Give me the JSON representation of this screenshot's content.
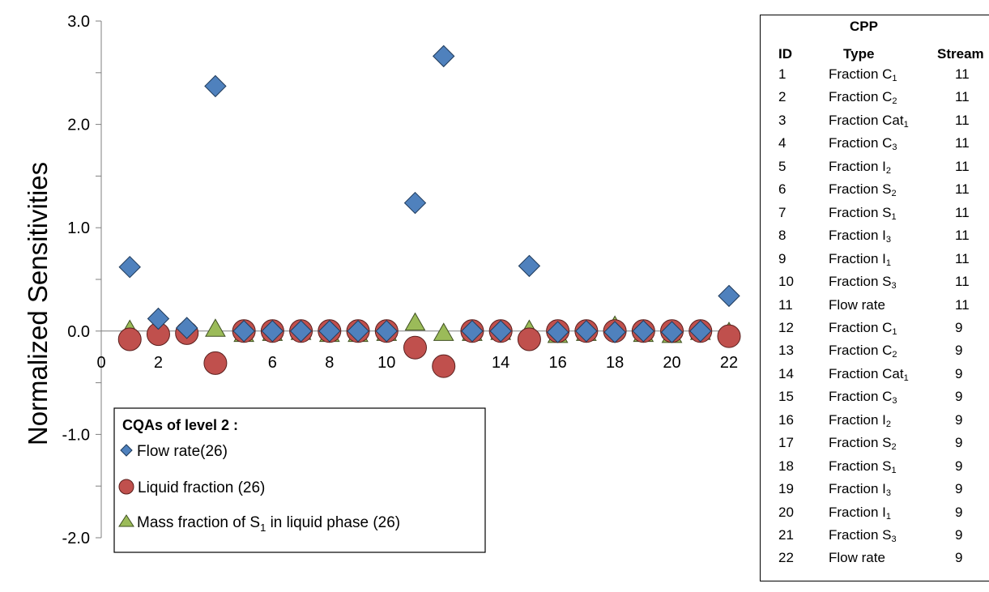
{
  "chart_data": {
    "type": "scatter",
    "ylabel": "Normalized Sensitivities",
    "xlim": [
      0,
      22
    ],
    "ylim": [
      -2.0,
      3.0
    ],
    "y_ticks": [
      "3.0",
      "2.0",
      "1.0",
      "0.0",
      "-1.0",
      "-2.0"
    ],
    "y_tick_values": [
      3,
      2,
      1,
      0,
      -1,
      -2
    ],
    "x_ticks": [
      "0",
      "2",
      "4",
      "6",
      "8",
      "10",
      "12",
      "14",
      "16",
      "18",
      "20",
      "22"
    ],
    "x_tick_values": [
      0,
      2,
      4,
      6,
      8,
      10,
      12,
      14,
      16,
      18,
      20,
      22
    ],
    "legend_title": "CQAs of level 2 :",
    "legend_position": "bottom-left",
    "grid": false,
    "series": [
      {
        "name": "Flow rate(26)",
        "marker": "diamond",
        "color": "#4f81bd",
        "x": [
          1,
          2,
          3,
          4,
          5,
          6,
          7,
          8,
          9,
          10,
          11,
          12,
          13,
          14,
          15,
          16,
          17,
          18,
          19,
          20,
          21,
          22
        ],
        "y": [
          0.62,
          0.12,
          0.03,
          2.37,
          0,
          0,
          0,
          0,
          0,
          0,
          1.24,
          2.66,
          0,
          0,
          0.63,
          -0.01,
          0,
          -0.01,
          0,
          -0.01,
          0,
          0.34
        ]
      },
      {
        "name": "Liquid fraction (26)",
        "marker": "circle",
        "color": "#c0504d",
        "x": [
          1,
          2,
          3,
          4,
          5,
          6,
          7,
          8,
          9,
          10,
          11,
          12,
          13,
          14,
          15,
          16,
          17,
          18,
          19,
          20,
          21,
          22
        ],
        "y": [
          -0.08,
          -0.03,
          -0.02,
          -0.31,
          0,
          0,
          0,
          0,
          0,
          0,
          -0.16,
          -0.34,
          0,
          0,
          -0.08,
          0,
          0,
          0,
          0,
          0,
          0,
          -0.05
        ]
      },
      {
        "name": "Mass fraction of S1 in liquid phase (26)",
        "marker": "triangle",
        "color": "#9bbb59",
        "x": [
          1,
          2,
          3,
          4,
          5,
          6,
          7,
          8,
          9,
          10,
          11,
          12,
          13,
          14,
          15,
          16,
          17,
          18,
          19,
          20,
          21,
          22
        ],
        "y": [
          0.01,
          0,
          0,
          0.02,
          -0.03,
          -0.02,
          -0.01,
          -0.03,
          -0.03,
          -0.02,
          0.08,
          -0.02,
          -0.02,
          -0.01,
          0.01,
          -0.04,
          -0.02,
          0.05,
          -0.03,
          -0.04,
          -0.01,
          -0.01
        ]
      }
    ]
  },
  "legend": {
    "title": "CQAs of level 2 :",
    "items": [
      {
        "label": "Flow rate(26)"
      },
      {
        "label": "Liquid fraction (26)"
      },
      {
        "label_main": "Mass fraction of S",
        "label_sub": "1",
        "label_rest": " in liquid phase (26)"
      }
    ]
  },
  "cpp_table": {
    "group_header": "CPP",
    "headers": {
      "id": "ID",
      "type": "Type",
      "stream": "Stream"
    },
    "rows": [
      {
        "id": "1",
        "type": "Fraction C",
        "sub": "1",
        "stream": "11"
      },
      {
        "id": "2",
        "type": "Fraction C",
        "sub": "2",
        "stream": "11"
      },
      {
        "id": "3",
        "type": "Fraction Cat",
        "sub": "1",
        "stream": "11"
      },
      {
        "id": "4",
        "type": "Fraction C",
        "sub": "3",
        "stream": "11"
      },
      {
        "id": "5",
        "type": "Fraction I",
        "sub": "2",
        "stream": "11"
      },
      {
        "id": "6",
        "type": "Fraction S",
        "sub": "2",
        "stream": "11"
      },
      {
        "id": "7",
        "type": "Fraction S",
        "sub": "1",
        "stream": "11"
      },
      {
        "id": "8",
        "type": "Fraction I",
        "sub": "3",
        "stream": "11"
      },
      {
        "id": "9",
        "type": "Fraction I",
        "sub": "1",
        "stream": "11"
      },
      {
        "id": "10",
        "type": "Fraction S",
        "sub": "3",
        "stream": "11"
      },
      {
        "id": "11",
        "type": "Flow rate",
        "sub": "",
        "stream": "11"
      },
      {
        "id": "12",
        "type": "Fraction C",
        "sub": "1",
        "stream": "9"
      },
      {
        "id": "13",
        "type": "Fraction C",
        "sub": "2",
        "stream": "9"
      },
      {
        "id": "14",
        "type": "Fraction Cat",
        "sub": "1",
        "stream": "9"
      },
      {
        "id": "15",
        "type": "Fraction C",
        "sub": "3",
        "stream": "9"
      },
      {
        "id": "16",
        "type": "Fraction I",
        "sub": "2",
        "stream": "9"
      },
      {
        "id": "17",
        "type": "Fraction S",
        "sub": "2",
        "stream": "9"
      },
      {
        "id": "18",
        "type": "Fraction S",
        "sub": "1",
        "stream": "9"
      },
      {
        "id": "19",
        "type": "Fraction I",
        "sub": "3",
        "stream": "9"
      },
      {
        "id": "20",
        "type": "Fraction I",
        "sub": "1",
        "stream": "9"
      },
      {
        "id": "21",
        "type": "Fraction S",
        "sub": "3",
        "stream": "9"
      },
      {
        "id": "22",
        "type": "Flow rate",
        "sub": "",
        "stream": "9"
      }
    ]
  }
}
